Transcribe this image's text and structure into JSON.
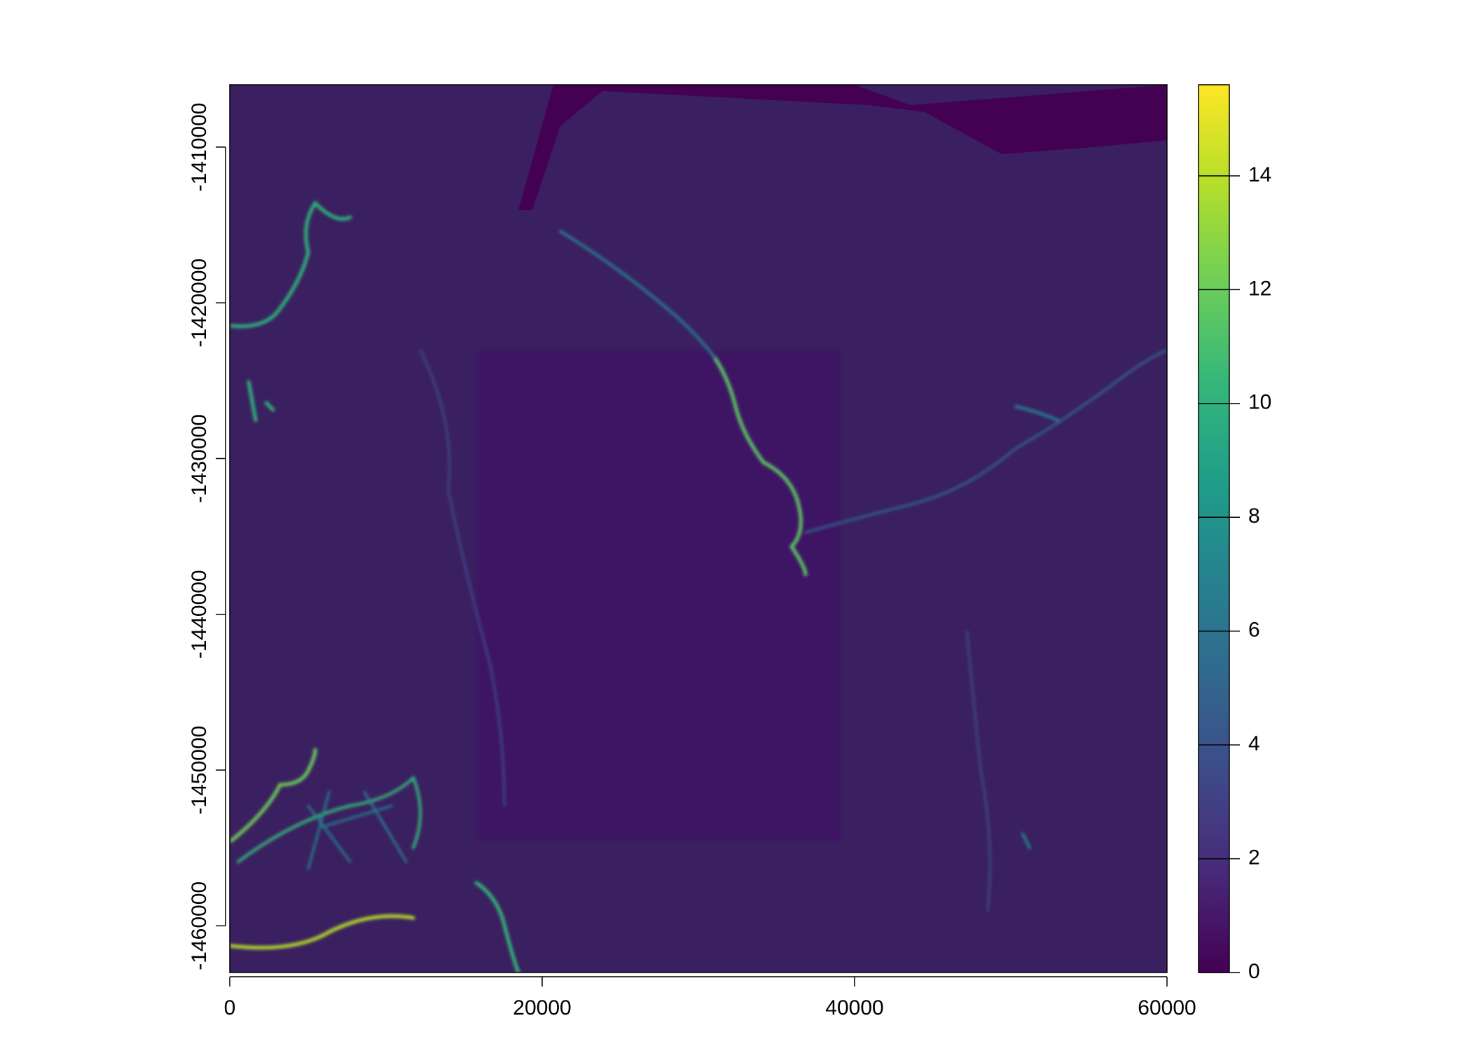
{
  "chart_data": {
    "type": "raster",
    "xlim": [
      0,
      60000
    ],
    "xticks": [
      0,
      20000,
      40000,
      60000
    ],
    "ylim": [
      -1463000,
      -1406000
    ],
    "yticks": [
      -1460000,
      -1450000,
      -1440000,
      -1430000,
      -1420000,
      -1410000
    ],
    "colorbar": {
      "lim": [
        0,
        15.6
      ],
      "ticks": [
        0,
        2,
        4,
        6,
        8,
        10,
        12,
        14
      ],
      "colors": [
        "#440154",
        "#482878",
        "#3e4a89",
        "#31688e",
        "#26828e",
        "#1f9e89",
        "#35b779",
        "#6ece58",
        "#b5de2b",
        "#fde725"
      ]
    }
  }
}
